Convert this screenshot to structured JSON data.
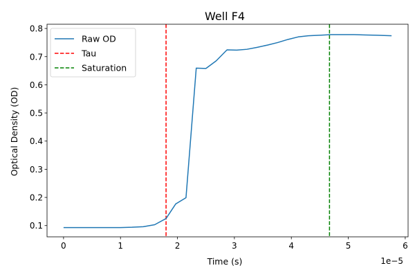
{
  "chart_data": {
    "type": "line",
    "title": "Well F4",
    "xlabel": "Time (s)",
    "ylabel": "Optical Density (OD)",
    "x_scale_factor_label": "1e−5",
    "xlim": [
      -0.29,
      6.05
    ],
    "ylim": [
      0.06,
      0.815
    ],
    "x_ticks": [
      0,
      1,
      2,
      3,
      4,
      5,
      6
    ],
    "x_tick_labels": [
      "0",
      "1",
      "2",
      "3",
      "4",
      "5",
      "6"
    ],
    "y_ticks": [
      0.1,
      0.2,
      0.3,
      0.4,
      0.5,
      0.6,
      0.7,
      0.8
    ],
    "y_tick_labels": [
      "0.1",
      "0.2",
      "0.3",
      "0.4",
      "0.5",
      "0.6",
      "0.7",
      "0.8"
    ],
    "grid": false,
    "legend_placement": "top-left",
    "series": [
      {
        "name": "Raw OD",
        "color": "#1f77b4",
        "style": "solid",
        "x": [
          0,
          0.2,
          0.4,
          0.6,
          0.8,
          1.0,
          1.2,
          1.4,
          1.6,
          1.8,
          1.97,
          2.15,
          2.33,
          2.5,
          2.68,
          2.87,
          3.04,
          3.22,
          3.4,
          3.58,
          3.76,
          3.94,
          4.12,
          4.3,
          4.5,
          4.7,
          4.9,
          5.1,
          5.3,
          5.5,
          5.76
        ],
        "y": [
          0.093,
          0.093,
          0.093,
          0.093,
          0.093,
          0.093,
          0.094,
          0.096,
          0.103,
          0.125,
          0.177,
          0.199,
          0.659,
          0.658,
          0.685,
          0.724,
          0.723,
          0.726,
          0.733,
          0.741,
          0.75,
          0.761,
          0.77,
          0.774,
          0.776,
          0.778,
          0.778,
          0.778,
          0.777,
          0.776,
          0.774
        ]
      }
    ],
    "vlines": [
      {
        "name": "Tau",
        "x": 1.8,
        "color": "#ff0000",
        "style": "dashed"
      },
      {
        "name": "Saturation",
        "x": 4.67,
        "color": "#008000",
        "style": "dashed"
      }
    ]
  }
}
